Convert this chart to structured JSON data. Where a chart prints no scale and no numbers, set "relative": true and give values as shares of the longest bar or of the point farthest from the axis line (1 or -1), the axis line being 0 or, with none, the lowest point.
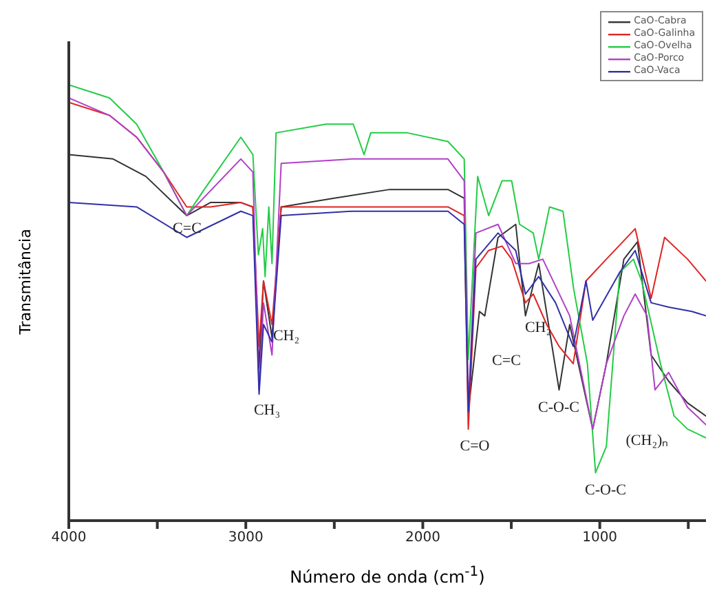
{
  "chart_data": {
    "type": "line",
    "relative": true,
    "xlabel": "Número de onda (cm$^{-1}$)",
    "ylabel": "Transmitância",
    "xlim": [
      4000,
      400
    ],
    "xticks": [
      4000,
      {
        "value": 3500,
        "label": null
      },
      3000,
      {
        "value": 2500,
        "label": null
      },
      2000,
      {
        "value": 1500,
        "label": null
      },
      1000,
      {
        "value": 500,
        "label": null
      }
    ],
    "grid": false,
    "legend": "top right",
    "marker": "none",
    "line_style": "solid",
    "series": [
      {
        "name": "CaO-Cabra",
        "color": "#333333",
        "x": [
          4000,
          3750,
          3565,
          3334,
          3200,
          3028,
          2960,
          2925,
          2900,
          2852,
          2800,
          2500,
          2187,
          1858,
          1766,
          1743,
          1680,
          1650,
          1575,
          1475,
          1420,
          1345,
          1230,
          1170,
          1040,
          963,
          864,
          787,
          710,
          611,
          504,
          400
        ],
        "values": [
          0.84,
          0.83,
          0.79,
          0.7,
          0.73,
          0.73,
          0.72,
          0.35,
          0.55,
          0.42,
          0.72,
          0.74,
          0.76,
          0.76,
          0.74,
          0.25,
          0.48,
          0.47,
          0.65,
          0.68,
          0.47,
          0.59,
          0.3,
          0.45,
          0.21,
          0.36,
          0.6,
          0.64,
          0.38,
          0.32,
          0.27,
          0.24
        ]
      },
      {
        "name": "CaO-Galinha",
        "color": "#e02424",
        "x": [
          4000,
          3770,
          3617,
          3464,
          3334,
          3200,
          3028,
          2960,
          2925,
          2900,
          2852,
          2800,
          2400,
          2000,
          1858,
          1766,
          1743,
          1700,
          1628,
          1552,
          1498,
          1420,
          1376,
          1300,
          1230,
          1150,
          1078,
          963,
          800,
          710,
          634,
          504,
          400
        ],
        "values": [
          0.96,
          0.93,
          0.88,
          0.8,
          0.72,
          0.72,
          0.73,
          0.72,
          0.4,
          0.55,
          0.45,
          0.72,
          0.72,
          0.72,
          0.72,
          0.7,
          0.21,
          0.58,
          0.62,
          0.63,
          0.6,
          0.5,
          0.52,
          0.45,
          0.4,
          0.36,
          0.55,
          0.6,
          0.67,
          0.51,
          0.65,
          0.6,
          0.55
        ]
      },
      {
        "name": "CaO-Ovelha",
        "color": "#22cc44",
        "x": [
          4000,
          3770,
          3617,
          3464,
          3334,
          3235,
          3028,
          2960,
          2929,
          2905,
          2891,
          2870,
          2852,
          2829,
          2546,
          2393,
          2332,
          2294,
          2088,
          1858,
          1766,
          1743,
          1690,
          1628,
          1552,
          1498,
          1453,
          1376,
          1345,
          1284,
          1208,
          1147,
          1070,
          1024,
          963,
          887,
          810,
          764,
          657,
          580,
          504,
          400
        ],
        "values": [
          1.0,
          0.97,
          0.91,
          0.8,
          0.7,
          0.76,
          0.88,
          0.84,
          0.61,
          0.67,
          0.56,
          0.72,
          0.59,
          0.89,
          0.91,
          0.91,
          0.84,
          0.89,
          0.89,
          0.87,
          0.83,
          0.37,
          0.79,
          0.7,
          0.78,
          0.78,
          0.68,
          0.66,
          0.6,
          0.72,
          0.71,
          0.53,
          0.36,
          0.11,
          0.17,
          0.57,
          0.6,
          0.55,
          0.36,
          0.24,
          0.21,
          0.19
        ]
      },
      {
        "name": "CaO-Porco",
        "color": "#b040c8",
        "x": [
          4000,
          3770,
          3617,
          3464,
          3334,
          3028,
          2960,
          2925,
          2900,
          2852,
          2800,
          2400,
          2000,
          1858,
          1766,
          1743,
          1700,
          1575,
          1475,
          1400,
          1322,
          1170,
          1040,
          963,
          864,
          800,
          733,
          688,
          611,
          504,
          400
        ],
        "values": [
          0.97,
          0.93,
          0.88,
          0.8,
          0.7,
          0.83,
          0.8,
          0.3,
          0.5,
          0.38,
          0.82,
          0.83,
          0.83,
          0.83,
          0.78,
          0.25,
          0.66,
          0.68,
          0.59,
          0.59,
          0.6,
          0.47,
          0.21,
          0.36,
          0.47,
          0.52,
          0.47,
          0.3,
          0.34,
          0.26,
          0.22
        ]
      },
      {
        "name": "CaO-Vaca",
        "color": "#3030a8",
        "x": [
          4000,
          3617,
          3334,
          3028,
          2960,
          2925,
          2900,
          2852,
          2800,
          2400,
          2000,
          1858,
          1766,
          1743,
          1700,
          1575,
          1475,
          1420,
          1345,
          1250,
          1150,
          1078,
          1040,
          887,
          800,
          710,
          611,
          480,
          400
        ],
        "values": [
          0.73,
          0.72,
          0.65,
          0.71,
          0.7,
          0.29,
          0.45,
          0.41,
          0.7,
          0.71,
          0.71,
          0.71,
          0.68,
          0.25,
          0.6,
          0.66,
          0.62,
          0.52,
          0.56,
          0.5,
          0.4,
          0.55,
          0.46,
          0.57,
          0.62,
          0.5,
          0.49,
          0.48,
          0.47
        ]
      }
    ],
    "annotations": [
      "C=C",
      "CH₂",
      "CH₃",
      "C=O",
      "C=C",
      "CH₂",
      "C-O-C",
      "C-O-C",
      "(CH₂)ₙ"
    ]
  }
}
